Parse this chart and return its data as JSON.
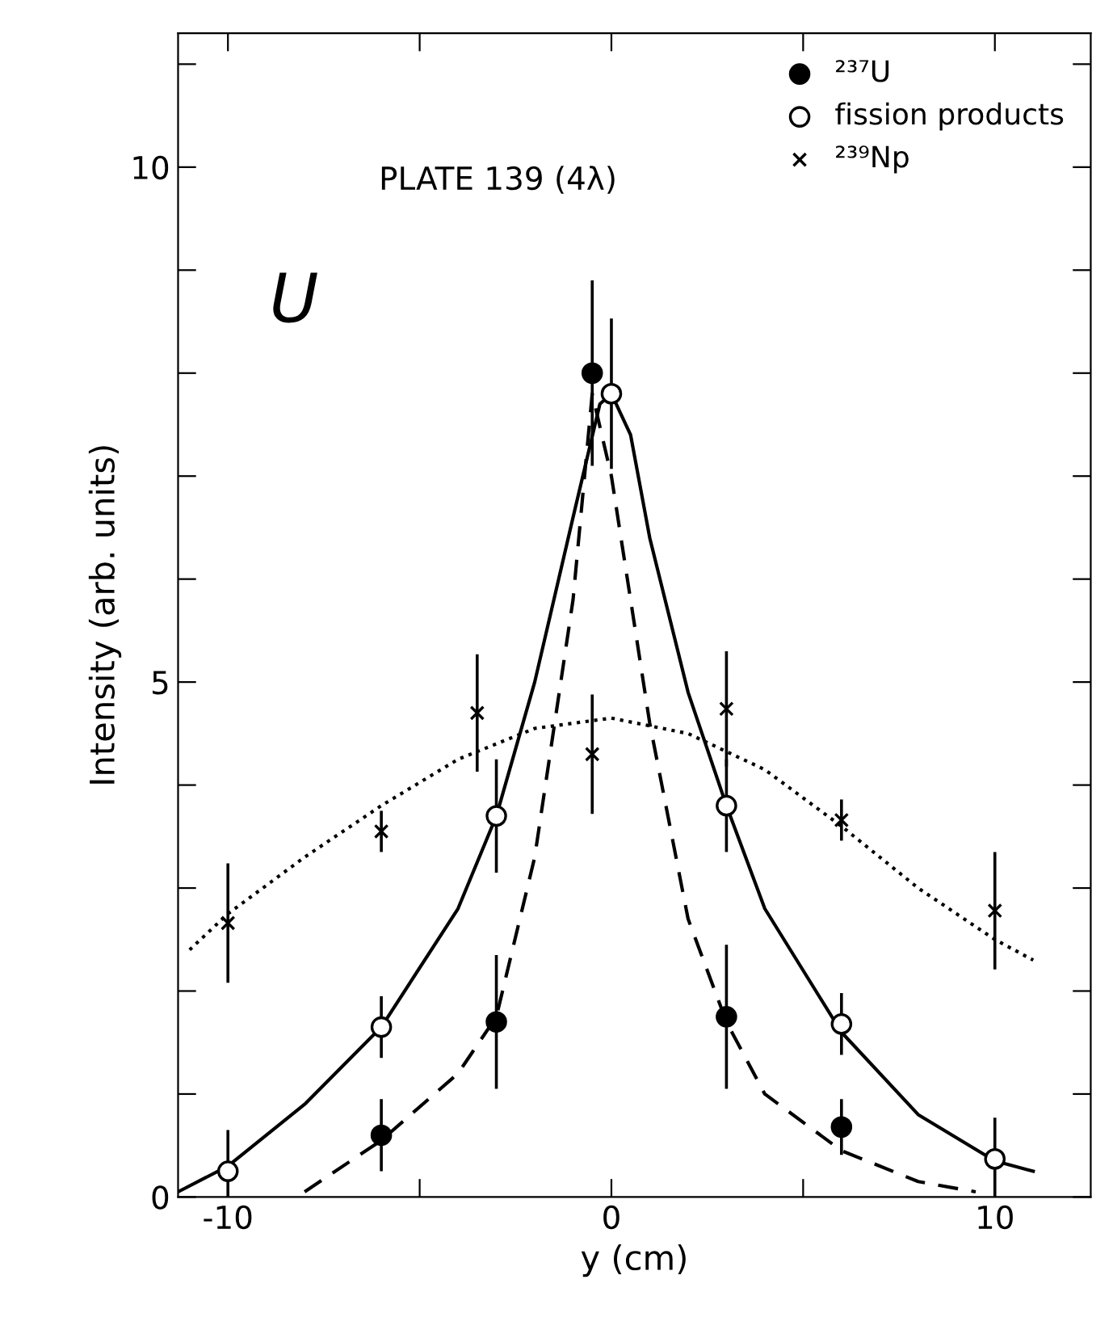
{
  "chart_data": {
    "type": "scatter",
    "xlabel": "y (cm)",
    "ylabel": "Intensity (arb. units)",
    "xlim": [
      -11.3,
      12.5
    ],
    "xticks": [
      -10,
      {
        "value": -5,
        "label": null
      },
      0,
      {
        "value": 5,
        "label": null
      },
      10
    ],
    "ylim": [
      0,
      11.3
    ],
    "yticks": [
      0,
      {
        "value": 1,
        "label": null
      },
      {
        "value": 2,
        "label": null
      },
      {
        "value": 3,
        "label": null
      },
      {
        "value": 4,
        "label": null
      },
      5,
      {
        "value": 6,
        "label": null
      },
      {
        "value": 7,
        "label": null
      },
      {
        "value": 8,
        "label": null
      },
      {
        "value": 9,
        "label": null
      },
      10,
      {
        "value": 11,
        "label": null
      }
    ],
    "grid": false,
    "legend": "top right",
    "annotations": [
      "PLATE 139 (4λ)",
      "U"
    ],
    "series": [
      {
        "name": "²³⁷U",
        "marker": "circle",
        "color": "#000000",
        "x": [
          -6,
          -3,
          -0.5,
          3,
          6
        ],
        "values": [
          0.6,
          1.7,
          8.0,
          1.75,
          0.68
        ],
        "errors": [
          0.35,
          0.65,
          0.9,
          0.7,
          0.27
        ]
      },
      {
        "name": "fission products",
        "marker": "open_circle",
        "color": "#000000",
        "x": [
          -10,
          -6,
          -3,
          0,
          3,
          6,
          10
        ],
        "values": [
          0.25,
          1.65,
          3.7,
          7.8,
          3.8,
          1.68,
          0.37
        ],
        "errors": [
          0.4,
          0.3,
          0.55,
          0.73,
          0.45,
          0.3,
          0.4
        ]
      },
      {
        "name": "²³⁹Np",
        "marker": "cross",
        "color": "#000000",
        "x": [
          -10,
          -6,
          -3.5,
          -0.5,
          3,
          6,
          10
        ],
        "values": [
          2.66,
          3.55,
          4.7,
          4.3,
          4.74,
          3.66,
          2.78
        ],
        "errors": [
          0.58,
          0.2,
          0.57,
          0.58,
          0.56,
          0.2,
          0.57
        ]
      },
      {
        "type": "line",
        "line_style": "solid",
        "color": "#000000",
        "x": [
          -11.3,
          -10,
          -8,
          -6,
          -4,
          -3,
          -2,
          -1,
          -0.3,
          0,
          0.5,
          1,
          2,
          3,
          4,
          6,
          8,
          10,
          11
        ],
        "values": [
          0.05,
          0.3,
          0.9,
          1.65,
          2.8,
          3.7,
          5.0,
          6.6,
          7.7,
          7.8,
          7.4,
          6.4,
          4.9,
          3.8,
          2.8,
          1.6,
          0.8,
          0.35,
          0.25
        ]
      },
      {
        "type": "line",
        "line_style": "dashed",
        "color": "#000000",
        "x": [
          -8,
          -6,
          -4,
          -3,
          -2,
          -1,
          -0.5,
          0,
          1,
          2,
          3,
          4,
          6,
          8,
          9.5
        ],
        "values": [
          0.05,
          0.55,
          1.2,
          1.75,
          3.3,
          5.8,
          7.8,
          7.0,
          4.6,
          2.7,
          1.7,
          1.0,
          0.45,
          0.15,
          0.05
        ]
      },
      {
        "type": "line",
        "line_style": "dotted",
        "color": "#000000",
        "x": [
          -11,
          -10,
          -8,
          -6,
          -4,
          -2,
          0,
          2,
          4,
          6,
          8,
          10,
          11
        ],
        "values": [
          2.4,
          2.75,
          3.3,
          3.8,
          4.25,
          4.55,
          4.65,
          4.5,
          4.15,
          3.6,
          3.0,
          2.5,
          2.3
        ]
      }
    ]
  }
}
